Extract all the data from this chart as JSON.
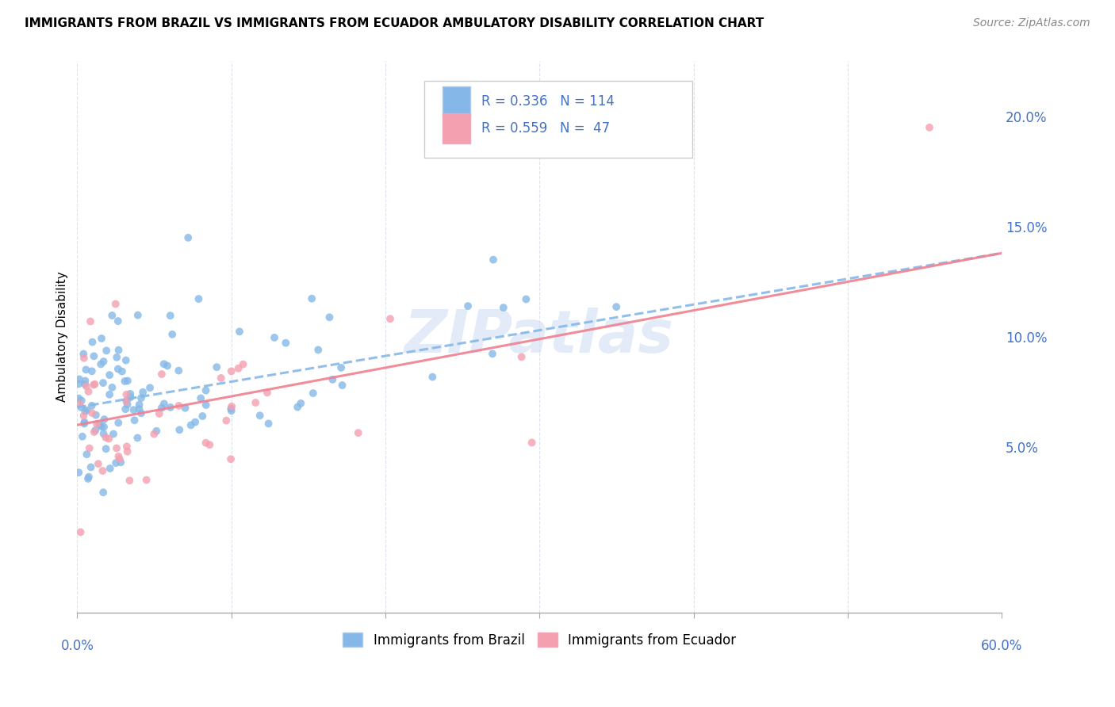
{
  "title": "IMMIGRANTS FROM BRAZIL VS IMMIGRANTS FROM ECUADOR AMBULATORY DISABILITY CORRELATION CHART",
  "source": "Source: ZipAtlas.com",
  "ylabel": "Ambulatory Disability",
  "xlim": [
    0.0,
    0.6
  ],
  "ylim": [
    -0.025,
    0.225
  ],
  "brazil_color": "#85b8e8",
  "ecuador_color": "#f4a0b0",
  "brazil_line_color": "#85b8e8",
  "ecuador_line_color": "#f08090",
  "brazil_R": 0.336,
  "brazil_N": 114,
  "ecuador_R": 0.559,
  "ecuador_N": 47,
  "legend_label_brazil": "Immigrants from Brazil",
  "legend_label_ecuador": "Immigrants from Ecuador",
  "watermark": "ZIPatlas",
  "brazil_line_x0": 0.0,
  "brazil_line_y0": 0.068,
  "brazil_line_x1": 0.6,
  "brazil_line_y1": 0.138,
  "ecuador_line_x0": 0.0,
  "ecuador_line_y0": 0.06,
  "ecuador_line_x1": 0.6,
  "ecuador_line_y1": 0.138,
  "ytick_vals": [
    0.05,
    0.1,
    0.15,
    0.2
  ],
  "ytick_labels": [
    "5.0%",
    "10.0%",
    "15.0%",
    "20.0%"
  ]
}
